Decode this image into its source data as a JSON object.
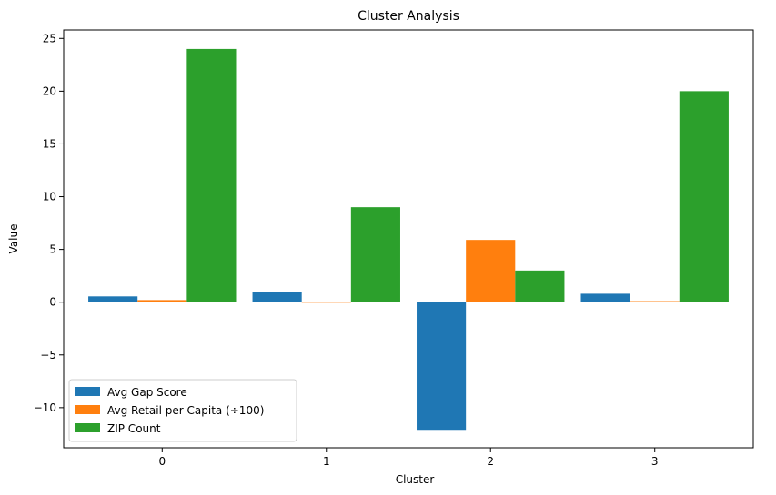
{
  "chart_data": {
    "type": "bar",
    "title": "Cluster Analysis",
    "xlabel": "Cluster",
    "ylabel": "Value",
    "categories": [
      "0",
      "1",
      "2",
      "3"
    ],
    "series": [
      {
        "name": "Avg Gap Score",
        "color": "#1f77b4",
        "values": [
          0.55,
          1.0,
          -12.1,
          0.8
        ]
      },
      {
        "name": "Avg Retail per Capita (÷100)",
        "color": "#ff7f0e",
        "values": [
          0.2,
          0.0,
          5.9,
          0.1
        ]
      },
      {
        "name": "ZIP Count",
        "color": "#2ca02c",
        "values": [
          24,
          9,
          3,
          20
        ]
      }
    ],
    "ylim": [
      -13.8,
      25.8
    ],
    "yticks": [
      -10,
      -5,
      0,
      5,
      10,
      15,
      20,
      25
    ],
    "ytick_labels": [
      "−10",
      "−5",
      "0",
      "5",
      "10",
      "15",
      "20",
      "25"
    ],
    "grid": false,
    "legend_position": "lower-left"
  }
}
